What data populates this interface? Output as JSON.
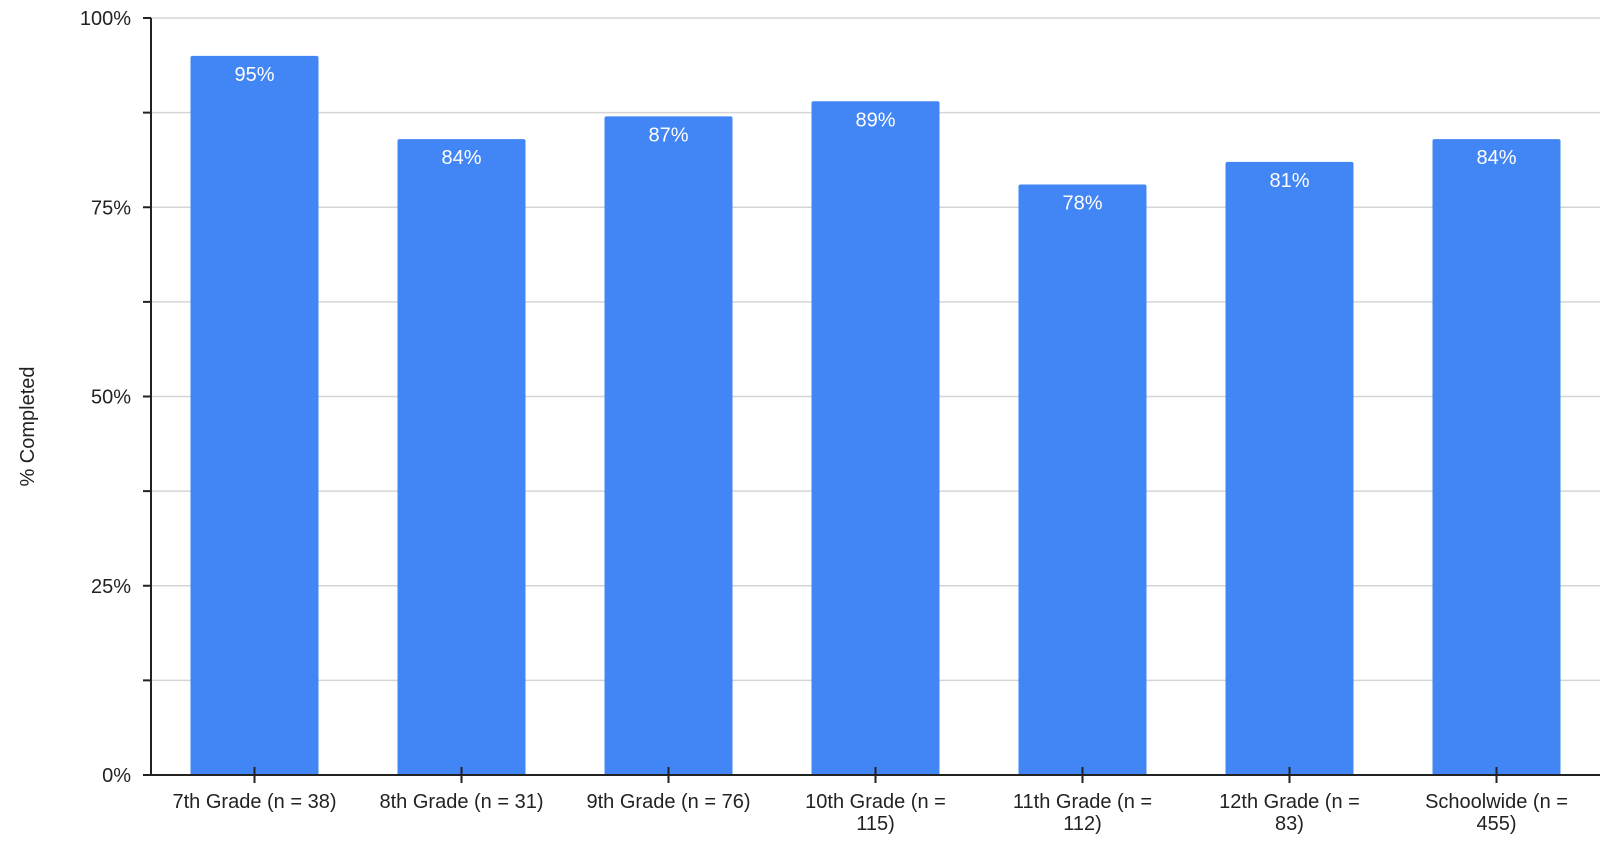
{
  "chart_data": {
    "type": "bar",
    "title": "",
    "xlabel": "",
    "ylabel": "% Completed",
    "ylim": [
      0,
      100
    ],
    "y_ticks": [
      0,
      25,
      50,
      75,
      100
    ],
    "y_tick_labels": [
      "0%",
      "25%",
      "50%",
      "75%",
      "100%"
    ],
    "grid": true,
    "categories": [
      "7th Grade (n = 38)",
      "8th Grade (n = 31)",
      "9th Grade (n = 76)",
      "10th Grade (n = 115)",
      "11th Grade (n = 112)",
      "12th Grade (n = 83)",
      "Schoolwide (n = 455)"
    ],
    "category_label_lines": [
      [
        "7th Grade (n = 38)"
      ],
      [
        "8th Grade (n = 31)"
      ],
      [
        "9th Grade (n = 76)"
      ],
      [
        "10th Grade (n =",
        "115)"
      ],
      [
        "11th Grade (n =",
        "112)"
      ],
      [
        "12th Grade (n =",
        "83)"
      ],
      [
        "Schoolwide (n =",
        "455)"
      ]
    ],
    "values": [
      95,
      84,
      87,
      89,
      78,
      81,
      84
    ],
    "data_labels": [
      "95%",
      "84%",
      "87%",
      "89%",
      "78%",
      "81%",
      "84%"
    ],
    "bar_color": "#4285f4"
  }
}
